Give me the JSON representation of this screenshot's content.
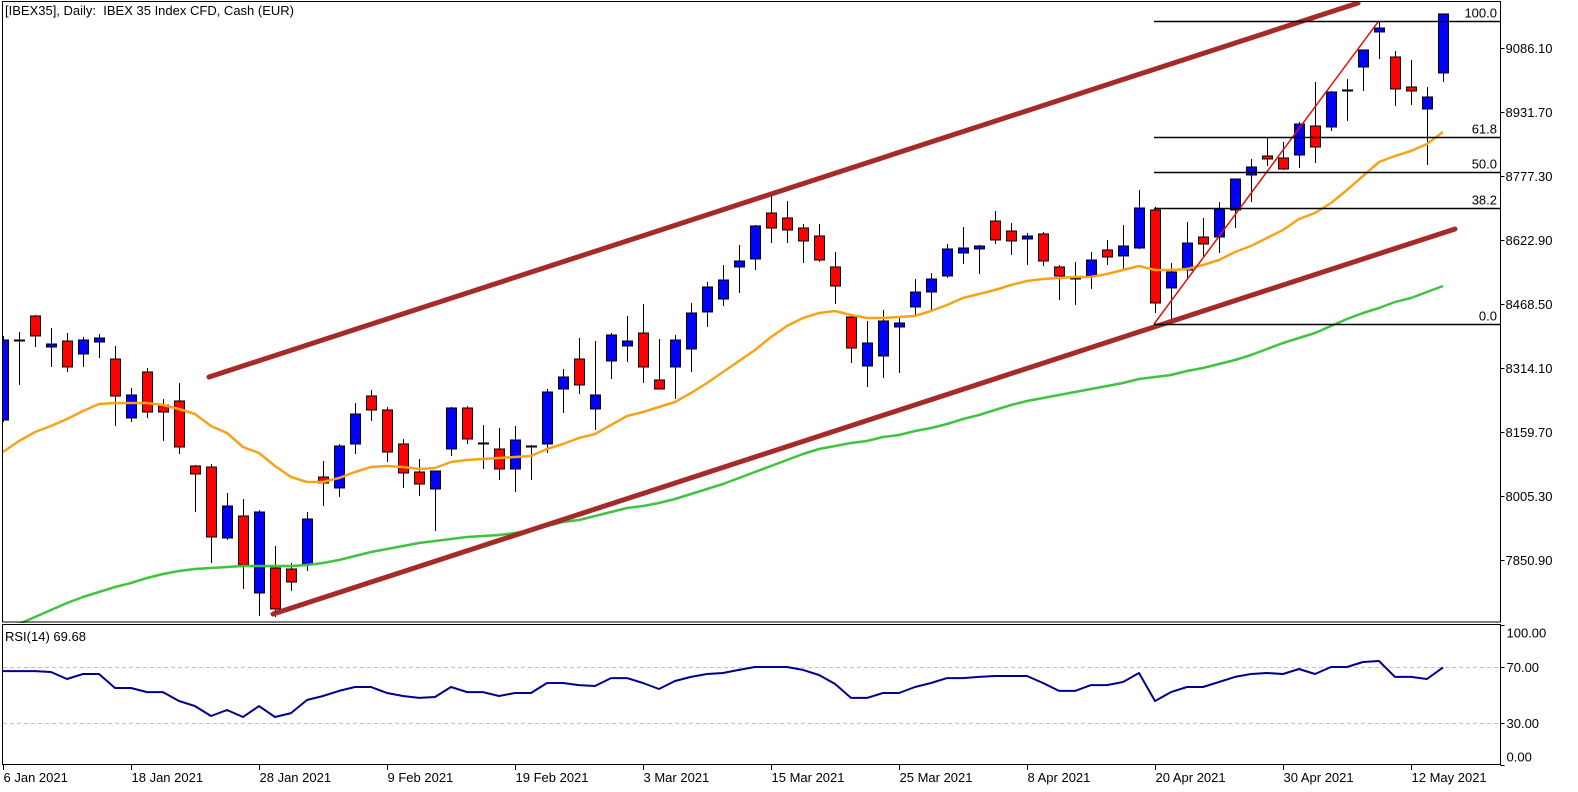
{
  "window": {
    "title": "[IBEX35], Daily:  IBEX 35 Index CFD, Cash (EUR)"
  },
  "colors": {
    "background": "#ffffff",
    "frame": "#000000",
    "bull_candle": "#0000ff",
    "bear_candle": "#ff0000",
    "wick": "#000000",
    "ma_orange": "#f5a31a",
    "ma_green": "#3ec43e",
    "channel": "#a52a2a",
    "swing_line": "#e01010",
    "fibonacci": "#000000",
    "rsi_line": "#00008b",
    "rsi_levels": "#c0c0c0"
  },
  "chart_data": [
    {
      "type": "candlestick",
      "title": "[IBEX35], Daily:  IBEX 35 Index CFD, Cash (EUR)",
      "symbol": "IBEX35",
      "timeframe": "Daily",
      "instrument": "IBEX 35 Index CFD, Cash (EUR)",
      "ylim": [
        7698.2,
        9193.9
      ],
      "y_tick_labels": [
        "9086.10",
        "8931.70",
        "8777.30",
        "8622.90",
        "8468.50",
        "8314.10",
        "8159.70",
        "8005.30",
        "7850.90"
      ],
      "x_ticks": [
        {
          "index": 0,
          "label": "6 Jan 2021"
        },
        {
          "index": 8,
          "label": "18 Jan 2021"
        },
        {
          "index": 16,
          "label": "28 Jan 2021"
        },
        {
          "index": 24,
          "label": "9 Feb 2021"
        },
        {
          "index": 32,
          "label": "19 Feb 2021"
        },
        {
          "index": 40,
          "label": "3 Mar 2021"
        },
        {
          "index": 48,
          "label": "15 Mar 2021"
        },
        {
          "index": 56,
          "label": "25 Mar 2021"
        },
        {
          "index": 64,
          "label": "8 Apr 2021"
        },
        {
          "index": 72,
          "label": "20 Apr 2021"
        },
        {
          "index": 80,
          "label": "30 Apr 2021"
        },
        {
          "index": 88,
          "label": "12 May 2021"
        }
      ],
      "candle_format": [
        "open",
        "high",
        "low",
        "close"
      ],
      "candles": [
        [
          8187.9,
          8390.6,
          8183.1,
          8380.9
        ],
        [
          8380.9,
          8400.2,
          8272.4,
          8380.9
        ],
        [
          8438.8,
          8441.2,
          8364.0,
          8390.6
        ],
        [
          8364.0,
          8409.9,
          8315.8,
          8371.3
        ],
        [
          8378.5,
          8397.8,
          8303.7,
          8315.8
        ],
        [
          8347.2,
          8388.2,
          8315.8,
          8380.9
        ],
        [
          8376.1,
          8395.4,
          8337.5,
          8385.8
        ],
        [
          8335.1,
          8366.5,
          8173.5,
          8245.8
        ],
        [
          8192.8,
          8265.1,
          8183.1,
          8248.3
        ],
        [
          8303.7,
          8313.4,
          8192.8,
          8207.2
        ],
        [
          8224.1,
          8238.6,
          8137.3,
          8207.2
        ],
        [
          8233.8,
          8277.2,
          8105.9,
          8122.8
        ],
        [
          8077.0,
          8079.4,
          7966.0,
          8057.7
        ],
        [
          8074.5,
          8081.8,
          7843.0,
          7905.7
        ],
        [
          7903.3,
          8011.8,
          7898.4,
          7980.5
        ],
        [
          7956.3,
          7997.4,
          7780.2,
          7838.1
        ],
        [
          7770.6,
          7970.8,
          7715.1,
          7966.0
        ],
        [
          7830.9,
          7884.0,
          7712.7,
          7732.0
        ],
        [
          7828.5,
          7843.0,
          7775.4,
          7797.1
        ],
        [
          7838.1,
          7966.0,
          7823.7,
          7949.1
        ],
        [
          8050.4,
          8089.0,
          7980.5,
          8036.0
        ],
        [
          8023.9,
          8130.0,
          8002.2,
          8125.2
        ],
        [
          8130.0,
          8229.0,
          8105.9,
          8202.4
        ],
        [
          8245.8,
          8260.3,
          8185.5,
          8212.1
        ],
        [
          8212.1,
          8219.3,
          8086.6,
          8110.7
        ],
        [
          8130.0,
          8142.1,
          8023.9,
          8060.1
        ],
        [
          8062.5,
          8093.9,
          8004.6,
          8033.5
        ],
        [
          8021.5,
          8064.9,
          7920.2,
          8064.9
        ],
        [
          8118.0,
          8219.3,
          8101.1,
          8216.9
        ],
        [
          8216.9,
          8221.7,
          8130.0,
          8142.1
        ],
        [
          8132.5,
          8175.9,
          8069.7,
          8132.5
        ],
        [
          8118.0,
          8168.6,
          8043.2,
          8069.7
        ],
        [
          8069.7,
          8173.5,
          8014.2,
          8139.7
        ],
        [
          8125.2,
          8127.6,
          8043.2,
          8125.2
        ],
        [
          8130.0,
          8262.7,
          8108.3,
          8255.5
        ],
        [
          8262.7,
          8311.0,
          8204.8,
          8291.7
        ],
        [
          8335.1,
          8385.8,
          8250.7,
          8272.4
        ],
        [
          8214.5,
          8378.5,
          8163.8,
          8248.3
        ],
        [
          8330.3,
          8397.8,
          8286.9,
          8393.0
        ],
        [
          8366.5,
          8438.8,
          8327.9,
          8378.5
        ],
        [
          8397.8,
          8467.8,
          8277.2,
          8315.8
        ],
        [
          8284.4,
          8383.4,
          8262.7,
          8262.7
        ],
        [
          8315.8,
          8393.0,
          8238.6,
          8380.9
        ],
        [
          8359.2,
          8470.2,
          8303.7,
          8446.1
        ],
        [
          8448.5,
          8520.9,
          8412.3,
          8508.8
        ],
        [
          8479.8,
          8561.9,
          8463.0,
          8525.7
        ],
        [
          8557.1,
          8610.1,
          8494.3,
          8571.5
        ],
        [
          8576.4,
          8658.4,
          8549.8,
          8656.0
        ],
        [
          8687.3,
          8730.7,
          8614.9,
          8651.1
        ],
        [
          8675.3,
          8716.3,
          8614.9,
          8646.3
        ],
        [
          8651.1,
          8660.8,
          8566.7,
          8619.8
        ],
        [
          8631.8,
          8660.8,
          8569.1,
          8573.9
        ],
        [
          8557.1,
          8593.2,
          8467.8,
          8511.2
        ],
        [
          8436.4,
          8436.4,
          8325.5,
          8361.6
        ],
        [
          8318.2,
          8426.8,
          8267.6,
          8373.7
        ],
        [
          8342.3,
          8453.3,
          8289.3,
          8426.8
        ],
        [
          8412.3,
          8436.4,
          8301.3,
          8422.0
        ],
        [
          8460.6,
          8528.1,
          8441.2,
          8496.7
        ],
        [
          8496.7,
          8542.6,
          8448.5,
          8528.1
        ],
        [
          8535.3,
          8612.5,
          8530.5,
          8600.5
        ],
        [
          8590.8,
          8653.5,
          8564.3,
          8602.9
        ],
        [
          8600.5,
          8610.1,
          8540.2,
          8607.7
        ],
        [
          8668.0,
          8692.1,
          8612.5,
          8622.2
        ],
        [
          8643.9,
          8663.2,
          8586.0,
          8619.8
        ],
        [
          8624.6,
          8639.1,
          8561.9,
          8631.8
        ],
        [
          8636.7,
          8641.5,
          8559.5,
          8571.5
        ],
        [
          8557.1,
          8561.9,
          8477.4,
          8535.3
        ],
        [
          8530.5,
          8569.1,
          8465.4,
          8530.5
        ],
        [
          8535.3,
          8593.2,
          8504.0,
          8573.9
        ],
        [
          8598.1,
          8622.2,
          8561.9,
          8581.2
        ],
        [
          8583.6,
          8658.4,
          8549.8,
          8607.7
        ],
        [
          8602.9,
          8742.8,
          8600.5,
          8699.4
        ],
        [
          8694.6,
          8701.8,
          8446.1,
          8470.2
        ],
        [
          8506.4,
          8566.7,
          8419.5,
          8545.0
        ],
        [
          8549.8,
          8665.6,
          8525.7,
          8614.9
        ],
        [
          8629.4,
          8675.3,
          8578.8,
          8612.5
        ],
        [
          8629.4,
          8713.9,
          8590.8,
          8697.0
        ],
        [
          8694.6,
          8769.3,
          8651.1,
          8769.3
        ],
        [
          8779.0,
          8817.6,
          8713.9,
          8798.3
        ],
        [
          8824.8,
          8870.7,
          8800.7,
          8817.6
        ],
        [
          8820.0,
          8858.6,
          8791.1,
          8793.5
        ],
        [
          8827.2,
          8906.9,
          8795.9,
          8902.0
        ],
        [
          8897.2,
          9003.4,
          8807.9,
          8846.5
        ],
        [
          8894.8,
          8981.6,
          8885.1,
          8979.2
        ],
        [
          8984.1,
          9010.6,
          8909.3,
          8984.1
        ],
        [
          9039.5,
          9080.6,
          8981.6,
          9080.6
        ],
        [
          9124.0,
          9150.5,
          9058.8,
          9133.6
        ],
        [
          9063.7,
          9078.1,
          8945.5,
          8986.5
        ],
        [
          8991.3,
          9056.4,
          8947.9,
          8981.6
        ],
        [
          8938.2,
          8991.3,
          8803.1,
          8967.2
        ],
        [
          9025.1,
          9167.4,
          9003.4,
          9167.4
        ]
      ],
      "series": [
        {
          "name": "Moving average (orange)",
          "color_key": "ma_orange",
          "values": [
            8110.7,
            8137.3,
            8159.0,
            8173.5,
            8190.3,
            8209.6,
            8226.5,
            8229.0,
            8229.0,
            8229.0,
            8224.1,
            8214.5,
            8202.4,
            8173.5,
            8156.6,
            8122.8,
            8108.3,
            8077.0,
            8050.4,
            8038.4,
            8038.4,
            8048.0,
            8062.5,
            8074.5,
            8077.0,
            8074.5,
            8069.7,
            8072.1,
            8086.6,
            8091.4,
            8093.9,
            8096.3,
            8098.7,
            8101.1,
            8118.0,
            8130.0,
            8144.5,
            8154.2,
            8175.9,
            8197.6,
            8207.2,
            8219.3,
            8231.4,
            8253.1,
            8277.2,
            8303.7,
            8330.3,
            8356.8,
            8388.2,
            8414.7,
            8434.0,
            8446.1,
            8450.9,
            8441.2,
            8434.0,
            8434.0,
            8436.4,
            8438.8,
            8450.9,
            8465.4,
            8482.3,
            8491.9,
            8501.6,
            8513.6,
            8523.3,
            8528.1,
            8530.5,
            8532.9,
            8532.9,
            8540.2,
            8549.8,
            8559.5,
            8549.8,
            8549.8,
            8552.2,
            8561.9,
            8573.9,
            8593.2,
            8607.7,
            8627.0,
            8646.3,
            8672.8,
            8687.3,
            8711.4,
            8742.8,
            8776.6,
            8810.4,
            8824.8,
            8836.9,
            8853.8,
            8882.7
          ]
        },
        {
          "name": "Moving average (green)",
          "color_key": "ma_green",
          "values": [
            7681.3,
            7695.8,
            7712.7,
            7729.6,
            7746.4,
            7760.9,
            7773.0,
            7785.1,
            7794.7,
            7806.8,
            7816.4,
            7823.7,
            7828.5,
            7830.9,
            7833.3,
            7835.7,
            7835.7,
            7835.7,
            7835.7,
            7838.1,
            7843.0,
            7850.2,
            7859.8,
            7869.5,
            7876.7,
            7884.0,
            7891.2,
            7896.0,
            7900.9,
            7905.7,
            7908.1,
            7910.5,
            7915.3,
            7922.6,
            7932.2,
            7941.9,
            7946.7,
            7956.3,
            7966.0,
            7975.6,
            7980.5,
            7987.7,
            7997.4,
            8009.4,
            8021.5,
            8033.5,
            8048.0,
            8062.5,
            8077.0,
            8091.4,
            8105.9,
            8118.0,
            8125.2,
            8132.5,
            8137.3,
            8146.9,
            8151.8,
            8161.4,
            8168.6,
            8178.3,
            8190.3,
            8200.0,
            8212.1,
            8224.1,
            8233.8,
            8241.0,
            8248.3,
            8255.5,
            8262.7,
            8270.0,
            8277.2,
            8286.9,
            8291.7,
            8296.5,
            8306.2,
            8313.4,
            8323.0,
            8332.7,
            8344.8,
            8359.2,
            8373.7,
            8385.8,
            8397.8,
            8414.7,
            8431.6,
            8446.1,
            8458.1,
            8472.6,
            8482.3,
            8496.7,
            8511.2
          ]
        }
      ],
      "trendlines": [
        {
          "name": "channel-upper",
          "start": [
            12.875,
            8291.7
          ],
          "end": [
            84.69,
            9193.9
          ],
          "color_key": "channel",
          "width": 5
        },
        {
          "name": "channel-lower",
          "start": [
            16.875,
            7719.9
          ],
          "end": [
            90.75,
            8648.7
          ],
          "color_key": "channel",
          "width": 5
        },
        {
          "name": "swing-line",
          "start": [
            71.94,
            8419.5
          ],
          "end": [
            85.94,
            9148.1
          ],
          "color_key": "swing_line",
          "width": 1.5
        }
      ],
      "fibonacci": {
        "start_index": 71.94,
        "low": 8419.5,
        "high": 9150.5,
        "levels": [
          {
            "ratio": 1.0,
            "label": "100.0"
          },
          {
            "ratio": 0.618,
            "label": "61.8"
          },
          {
            "ratio": 0.5,
            "label": "50.0"
          },
          {
            "ratio": 0.382,
            "label": "38.2"
          },
          {
            "ratio": 0.0,
            "label": "0.0"
          }
        ]
      },
      "xlabel": "",
      "ylabel": "",
      "grid": false
    },
    {
      "type": "line",
      "name": "RSI(14)",
      "label": "RSI(14) 69.68",
      "last_value": 69.68,
      "ylim": [
        0,
        100
      ],
      "y_tick_labels": [
        "100.00",
        "70.00",
        "30.00",
        "0.00"
      ],
      "levels": [
        70,
        30
      ],
      "values": [
        67.1,
        67.1,
        67.1,
        66.4,
        61.4,
        65.0,
        65.0,
        55.0,
        55.0,
        52.1,
        52.1,
        45.7,
        42.1,
        35.0,
        39.3,
        34.3,
        42.1,
        34.3,
        37.1,
        46.4,
        49.3,
        52.9,
        55.7,
        55.7,
        51.4,
        49.3,
        47.9,
        48.6,
        55.7,
        52.1,
        52.1,
        49.3,
        51.4,
        51.4,
        58.6,
        58.6,
        57.1,
        56.4,
        62.1,
        62.1,
        58.6,
        54.3,
        60.0,
        62.9,
        65.0,
        65.7,
        67.9,
        70.0,
        70.0,
        70.0,
        67.9,
        64.3,
        57.9,
        47.9,
        47.9,
        51.4,
        51.4,
        55.7,
        58.6,
        62.1,
        62.1,
        62.9,
        63.6,
        63.6,
        63.6,
        58.6,
        52.9,
        52.9,
        57.1,
        57.1,
        59.3,
        65.7,
        45.7,
        52.1,
        55.7,
        55.7,
        59.3,
        62.9,
        65.0,
        65.7,
        65.0,
        68.6,
        65.0,
        70.0,
        70.0,
        73.6,
        74.3,
        62.9,
        62.9,
        61.4,
        69.68
      ]
    }
  ]
}
